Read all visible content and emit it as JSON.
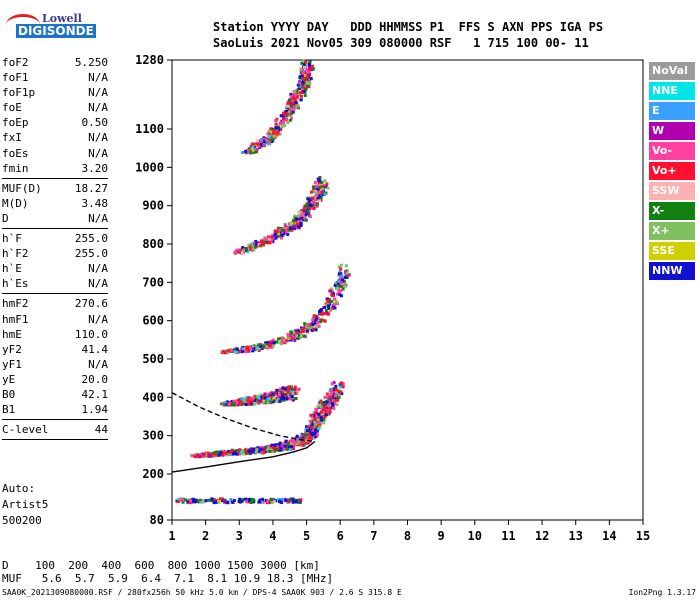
{
  "logo": {
    "line1": "Lowell",
    "line2": "DIGISONDE"
  },
  "header": {
    "line1": "Station YYYY DAY   DDD HHMMSS P1  FFS S AXN PPS IGA PS",
    "line2": "SaoLuis 2021 Nov05 309 080000 RSF   1 715 100 00- 11"
  },
  "params": [
    {
      "label": "foF2",
      "value": "5.250"
    },
    {
      "label": "foF1",
      "value": "N/A"
    },
    {
      "label": "foF1p",
      "value": "N/A"
    },
    {
      "label": "foE",
      "value": "N/A"
    },
    {
      "label": "foEp",
      "value": "0.50"
    },
    {
      "label": "fxI",
      "value": "N/A"
    },
    {
      "label": "foEs",
      "value": "N/A"
    },
    {
      "label": "fmin",
      "value": "3.20"
    },
    {
      "sep": true
    },
    {
      "label": "MUF(D)",
      "value": "18.27"
    },
    {
      "label": "M(D)",
      "value": "3.48"
    },
    {
      "label": "D",
      "value": "N/A"
    },
    {
      "sep": true
    },
    {
      "label": "h`F",
      "value": "255.0"
    },
    {
      "label": "h`F2",
      "value": "255.0"
    },
    {
      "label": "h`E",
      "value": "N/A"
    },
    {
      "label": "h`Es",
      "value": "N/A"
    },
    {
      "sep": true
    },
    {
      "label": "hmF2",
      "value": "270.6"
    },
    {
      "label": "hmF1",
      "value": "N/A"
    },
    {
      "label": "hmE",
      "value": "110.0"
    },
    {
      "label": "yF2",
      "value": "41.4"
    },
    {
      "label": "yF1",
      "value": "N/A"
    },
    {
      "label": "yE",
      "value": "20.0"
    },
    {
      "label": "B0",
      "value": "42.1"
    },
    {
      "label": "B1",
      "value": "1.94"
    },
    {
      "sep": true
    },
    {
      "label": "C-level",
      "value": "44"
    },
    {
      "sep": true
    }
  ],
  "auto": {
    "line1": "Auto:",
    "line2": "Artist5",
    "line3": "500200"
  },
  "legend": [
    {
      "label": "NoVal",
      "color": "#9a9a9a"
    },
    {
      "label": "NNE",
      "color": "#00e5e5"
    },
    {
      "label": "E",
      "color": "#3aa0ff"
    },
    {
      "label": "W",
      "color": "#b000b0"
    },
    {
      "label": "Vo-",
      "color": "#ff40a0"
    },
    {
      "label": "Vo+",
      "color": "#ff1030"
    },
    {
      "label": "SSW",
      "color": "#ffb0b0"
    },
    {
      "label": "X-",
      "color": "#108010"
    },
    {
      "label": "X+",
      "color": "#80c060"
    },
    {
      "label": "SSE",
      "color": "#d0d000"
    },
    {
      "label": "NNW",
      "color": "#1010d0"
    }
  ],
  "muf_table": {
    "line1": "D    100  200  400  600  800 1000 1500 3000 [km]",
    "line2": "MUF   5.6  5.7  5.9  6.4  7.1  8.1 10.9 18.3 [MHz]"
  },
  "footer": "SAA0K_2021309080000.RSF / 280fx256h 50 kHz 5.0 km / DPS-4 SAA0K 903 / 2.6 S 315.8 E",
  "version": "Ion2Png 1.3.17",
  "chart_data": {
    "type": "scatter",
    "title": "",
    "xlabel": "",
    "ylabel": "",
    "xlim": [
      1,
      15
    ],
    "ylim": [
      80,
      1280
    ],
    "x_ticks": [
      "1",
      "2",
      "3",
      "4",
      "5",
      "6",
      "7",
      "8",
      "9",
      "10",
      "11",
      "12",
      "13",
      "14",
      "15"
    ],
    "y_ticks": [
      "80",
      "200",
      "300",
      "400",
      "500",
      "600",
      "700",
      "800",
      "900",
      "1000",
      "1100",
      "1280"
    ],
    "y_tick_values": [
      80,
      200,
      300,
      400,
      500,
      600,
      700,
      800,
      900,
      1000,
      1100,
      1280
    ],
    "traces": [
      {
        "name": "E-layer echo",
        "x_range": [
          1.1,
          4.8
        ],
        "height": 134
      },
      {
        "name": "F2 trace 1",
        "points": [
          [
            1.7,
            250
          ],
          [
            2.5,
            256
          ],
          [
            3.5,
            262
          ],
          [
            4.3,
            272
          ],
          [
            4.8,
            285
          ],
          [
            5.1,
            305
          ],
          [
            5.25,
            340
          ],
          [
            5.6,
            380
          ],
          [
            5.9,
            420
          ]
        ]
      },
      {
        "name": "F2 trace 2",
        "points": [
          [
            2.6,
            385
          ],
          [
            3.2,
            390
          ],
          [
            4.0,
            398
          ],
          [
            4.6,
            410
          ]
        ]
      },
      {
        "name": "multi-hop 1",
        "points": [
          [
            2.5,
            520
          ],
          [
            3.5,
            530
          ],
          [
            4.5,
            555
          ],
          [
            5.2,
            590
          ],
          [
            5.8,
            660
          ],
          [
            6.1,
            730
          ]
        ]
      },
      {
        "name": "multi-hop 2",
        "points": [
          [
            2.9,
            780
          ],
          [
            3.8,
            810
          ],
          [
            4.6,
            850
          ],
          [
            5.1,
            900
          ],
          [
            5.5,
            960
          ]
        ]
      },
      {
        "name": "multi-hop 3",
        "points": [
          [
            3.2,
            1040
          ],
          [
            3.9,
            1080
          ],
          [
            4.4,
            1140
          ],
          [
            4.8,
            1200
          ],
          [
            5.0,
            1260
          ]
        ]
      }
    ],
    "profile_solid": [
      [
        1.0,
        205
      ],
      [
        2.0,
        218
      ],
      [
        3.0,
        232
      ],
      [
        4.0,
        245
      ],
      [
        4.6,
        257
      ],
      [
        5.0,
        268
      ],
      [
        5.25,
        285
      ]
    ],
    "profile_dashed": [
      [
        1.0,
        412
      ],
      [
        1.8,
        375
      ],
      [
        2.6,
        345
      ],
      [
        3.4,
        320
      ],
      [
        4.2,
        300
      ],
      [
        4.8,
        290
      ],
      [
        5.25,
        285
      ]
    ]
  }
}
